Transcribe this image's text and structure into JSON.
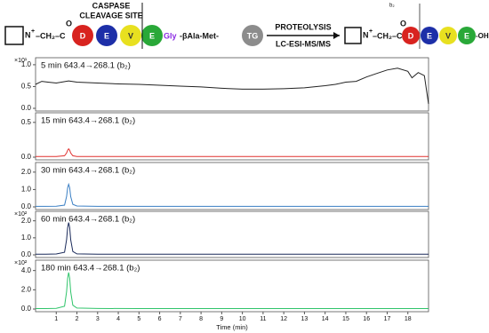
{
  "scheme": {
    "left": {
      "amine": "N",
      "charge": "+",
      "linker": "–CH₂–C",
      "oxygen": "O",
      "residues": [
        "D",
        "E",
        "V",
        "E"
      ],
      "gly": "Gly",
      "peptide": "-βAla-Met-",
      "tag": "TG",
      "site": [
        "CASPASE",
        "CLEAVAGE SITE"
      ]
    },
    "arrow": {
      "top": "PROTEOLYSIS",
      "bottom": "LC-ESI-MS/MS"
    },
    "right": {
      "amine": "N",
      "charge": "+",
      "linker": "–CH₂–C",
      "oxygen": "O",
      "fragment": "b₂",
      "residues": [
        "D",
        "E",
        "V",
        "E"
      ],
      "end": "-OH"
    }
  },
  "chart_data": [
    {
      "type": "line",
      "title": "5 min 643.4→268.1 (b₂)",
      "multiplier": "×10¹",
      "color": "#222222",
      "x": [
        0,
        0.3,
        0.6,
        1,
        1.6,
        2,
        3,
        4,
        5,
        6,
        7,
        8,
        9,
        10,
        11,
        12,
        13,
        14,
        14.5,
        15,
        15.5,
        16,
        16.5,
        17,
        17.5,
        18,
        18.2,
        18.5,
        18.8,
        19
      ],
      "values": [
        0.55,
        0.62,
        0.6,
        0.58,
        0.63,
        0.6,
        0.58,
        0.56,
        0.55,
        0.53,
        0.51,
        0.49,
        0.46,
        0.44,
        0.44,
        0.45,
        0.47,
        0.52,
        0.55,
        0.6,
        0.62,
        0.72,
        0.8,
        0.88,
        0.92,
        0.85,
        0.7,
        0.82,
        0.75,
        0.1
      ],
      "xlim": [
        0,
        19
      ],
      "ylim": [
        0,
        1.1
      ],
      "yticks": [
        {
          "value": 0,
          "label": "0.0"
        },
        {
          "value": 0.5,
          "label": "0.5"
        },
        {
          "value": 1,
          "label": "1.0"
        }
      ]
    },
    {
      "type": "line",
      "title": "15 min 643.4→268.1 (b₂)",
      "color": "#e0302e",
      "x": [
        0,
        0.5,
        1,
        1.4,
        1.5,
        1.55,
        1.6,
        1.65,
        1.7,
        1.8,
        2,
        3,
        5,
        8,
        11,
        14,
        17,
        19
      ],
      "values": [
        0.01,
        0.01,
        0.01,
        0.02,
        0.06,
        0.1,
        0.12,
        0.1,
        0.06,
        0.02,
        0.01,
        0.01,
        0.01,
        0.01,
        0.01,
        0.01,
        0.01,
        0.01
      ],
      "xlim": [
        0,
        19
      ],
      "ylim": [
        0,
        0.6
      ],
      "yticks": [
        {
          "value": 0,
          "label": "0.0"
        },
        {
          "value": 0.5,
          "label": "0.5"
        }
      ]
    },
    {
      "type": "line",
      "title": "30 min 643.4→268.1 (b₂)",
      "color": "#3a7fc4",
      "x": [
        0,
        0.5,
        1,
        1.4,
        1.5,
        1.55,
        1.6,
        1.65,
        1.7,
        1.8,
        2,
        3,
        5,
        8,
        11,
        14,
        17,
        19
      ],
      "values": [
        0.03,
        0.03,
        0.04,
        0.1,
        0.6,
        1.1,
        1.3,
        1.1,
        0.6,
        0.15,
        0.05,
        0.03,
        0.03,
        0.03,
        0.03,
        0.03,
        0.03,
        0.03
      ],
      "xlim": [
        0,
        19
      ],
      "ylim": [
        0,
        2.4
      ],
      "yticks": [
        {
          "value": 0,
          "label": "0.0"
        },
        {
          "value": 1,
          "label": "1.0"
        },
        {
          "value": 2,
          "label": "2.0"
        }
      ]
    },
    {
      "type": "line",
      "title": "60 min 643.4→268.1 (b₂)",
      "multiplier": "×10²",
      "color": "#1a2a5a",
      "x": [
        0,
        0.5,
        1,
        1.4,
        1.5,
        1.55,
        1.6,
        1.65,
        1.7,
        1.8,
        2,
        3,
        5,
        8,
        11,
        14,
        17,
        19
      ],
      "values": [
        0.04,
        0.04,
        0.05,
        0.15,
        0.9,
        1.6,
        1.9,
        1.6,
        0.9,
        0.2,
        0.06,
        0.04,
        0.04,
        0.04,
        0.04,
        0.04,
        0.04,
        0.04
      ],
      "xlim": [
        0,
        19
      ],
      "ylim": [
        0,
        2.4
      ],
      "yticks": [
        {
          "value": 0,
          "label": "0.0"
        },
        {
          "value": 1,
          "label": "1.0"
        },
        {
          "value": 2,
          "label": "2.0"
        }
      ]
    },
    {
      "type": "line",
      "title": "180 min 643.4→268.1 (b₂)",
      "multiplier": "×10²",
      "color": "#2fc46a",
      "x": [
        0,
        0.5,
        1,
        1.4,
        1.5,
        1.55,
        1.6,
        1.65,
        1.7,
        1.8,
        2,
        3,
        5,
        8,
        11,
        14,
        17,
        19
      ],
      "values": [
        0.05,
        0.05,
        0.07,
        0.3,
        1.8,
        3.2,
        3.8,
        3.2,
        1.8,
        0.4,
        0.1,
        0.06,
        0.05,
        0.05,
        0.05,
        0.05,
        0.05,
        0.05
      ],
      "xlim": [
        0,
        19
      ],
      "ylim": [
        0,
        4.8
      ],
      "yticks": [
        {
          "value": 0,
          "label": "0.0"
        },
        {
          "value": 2,
          "label": "2.0"
        },
        {
          "value": 4,
          "label": "4.0"
        }
      ],
      "xticks": [
        1,
        2,
        3,
        4,
        5,
        6,
        7,
        8,
        9,
        10,
        11,
        12,
        13,
        14,
        15,
        16,
        17,
        18
      ],
      "xlabel": "Time (min)"
    }
  ]
}
